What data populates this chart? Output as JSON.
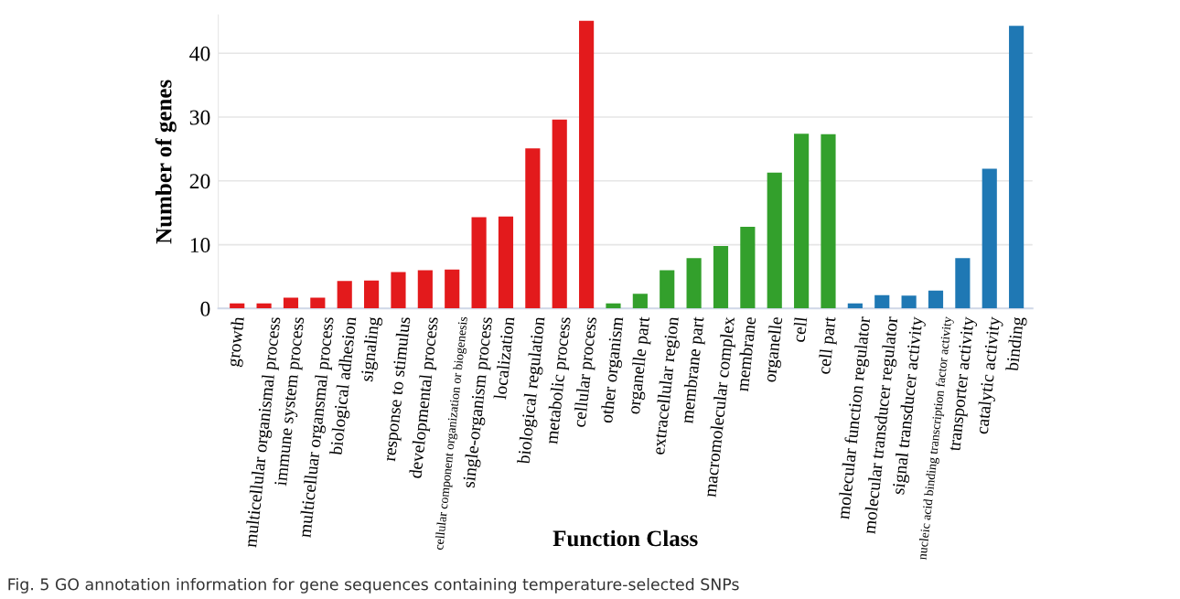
{
  "chart_data": {
    "type": "bar",
    "xlabel": "Function Class",
    "ylabel": "Number of genes",
    "categories": [
      "growth",
      "multicellular organismal process",
      "immune system process",
      "multicelluar organsmal process",
      "biological adhesion",
      "signaling",
      "response to stimulus",
      "developmental process",
      "cellular component organization or biogenesis",
      "single-organism process",
      "localization",
      "biological regulation",
      "metabolic process",
      "cellular process",
      "other organism",
      "organelle part",
      "extracellular region",
      "membrane part",
      "macromolecular complex",
      "membrane",
      "organelle",
      "cell",
      "cell part",
      "molecular function regulator",
      "molecular transducer regulator",
      "signal transducer activity",
      "nucleic acid binding transcription factor activity",
      "transporter activity",
      "catalytic activity",
      "binding"
    ],
    "values": [
      0.8,
      0.8,
      1.7,
      1.7,
      4.3,
      4.4,
      5.7,
      6.0,
      6.1,
      14.3,
      14.4,
      25.1,
      29.6,
      45.1,
      0.8,
      2.3,
      6.0,
      7.9,
      9.8,
      12.8,
      21.3,
      27.4,
      27.3,
      0.8,
      2.1,
      2.0,
      2.8,
      7.9,
      21.9,
      44.3
    ],
    "colors": [
      "#e31a1c",
      "#e31a1c",
      "#e31a1c",
      "#e31a1c",
      "#e31a1c",
      "#e31a1c",
      "#e31a1c",
      "#e31a1c",
      "#e31a1c",
      "#e31a1c",
      "#e31a1c",
      "#e31a1c",
      "#e31a1c",
      "#e31a1c",
      "#33a02c",
      "#33a02c",
      "#33a02c",
      "#33a02c",
      "#33a02c",
      "#33a02c",
      "#33a02c",
      "#33a02c",
      "#33a02c",
      "#1f78b4",
      "#1f78b4",
      "#1f78b4",
      "#1f78b4",
      "#1f78b4",
      "#1f78b4",
      "#1f78b4"
    ],
    "ylim": [
      0,
      46
    ],
    "yticks": [
      0,
      10,
      20,
      30,
      40
    ],
    "grid": "y",
    "annotations": [
      "Fig. 5 GO annotation information for gene sequences containing temperature-selected SNPs"
    ]
  }
}
